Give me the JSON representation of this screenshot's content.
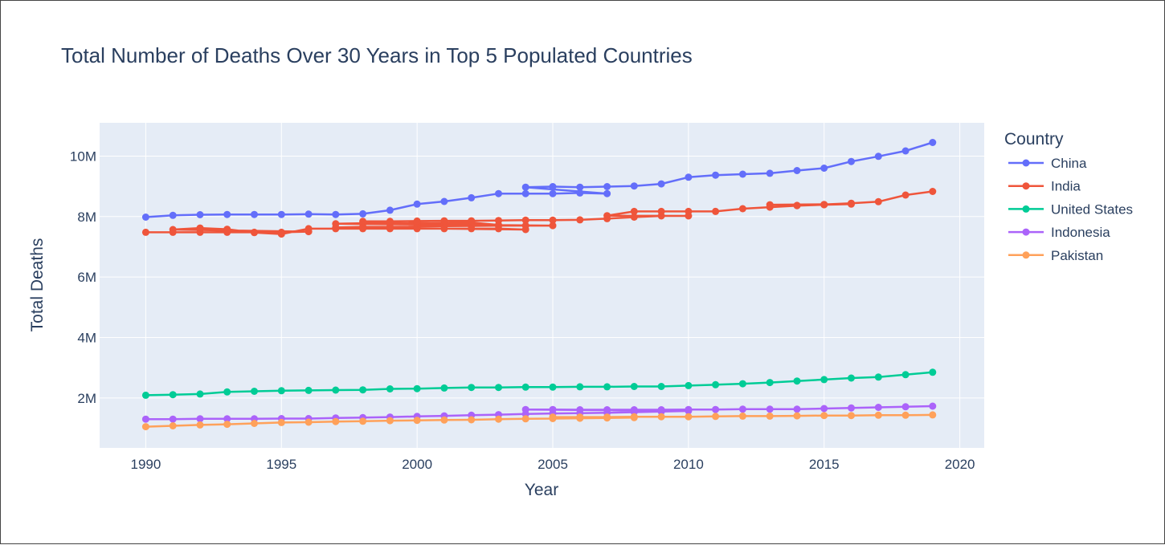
{
  "chart_data": {
    "type": "line",
    "title": "Total Number of Deaths Over 30 Years in Top 5 Populated Countries",
    "xlabel": "Year",
    "ylabel": "Total Deaths",
    "xlim": [
      1988.3,
      2020.9
    ],
    "ylim": [
      350000,
      11100000
    ],
    "x_ticks": [
      1990,
      1995,
      2000,
      2005,
      2010,
      2015,
      2020
    ],
    "y_ticks": [
      {
        "value": 2000000,
        "label": "2M"
      },
      {
        "value": 4000000,
        "label": "4M"
      },
      {
        "value": 6000000,
        "label": "6M"
      },
      {
        "value": 8000000,
        "label": "8M"
      },
      {
        "value": 10000000,
        "label": "10M"
      }
    ],
    "grid": true,
    "plot_background": "#e5ecf6",
    "legend_title": "Country",
    "legend_position": "right",
    "series": [
      {
        "name": "China",
        "color": "#636efa",
        "points": [
          [
            1990,
            7980000
          ],
          [
            1991,
            8040000
          ],
          [
            1992,
            8060000
          ],
          [
            1993,
            8070000
          ],
          [
            1994,
            8070000
          ],
          [
            1995,
            8070000
          ],
          [
            1996,
            8080000
          ],
          [
            1997,
            8070000
          ],
          [
            1998,
            8090000
          ],
          [
            1999,
            8210000
          ],
          [
            2000,
            8410000
          ],
          [
            2001,
            8500000
          ],
          [
            2002,
            8620000
          ],
          [
            2003,
            8760000
          ],
          [
            2004,
            8760000
          ],
          [
            2005,
            8760000
          ],
          [
            2006,
            8780000
          ],
          [
            2007,
            8760000
          ],
          [
            2004,
            8970000
          ],
          [
            2005,
            8990000
          ],
          [
            2006,
            8970000
          ],
          [
            2007,
            8990000
          ],
          [
            2008,
            9010000
          ],
          [
            2009,
            9080000
          ],
          [
            2010,
            9300000
          ],
          [
            2011,
            9370000
          ],
          [
            2012,
            9400000
          ],
          [
            2013,
            9430000
          ],
          [
            2014,
            9520000
          ],
          [
            2015,
            9600000
          ],
          [
            2016,
            9820000
          ],
          [
            2017,
            9990000
          ],
          [
            2018,
            10170000
          ],
          [
            2019,
            10450000
          ]
        ]
      },
      {
        "name": "India",
        "color": "#ef553b",
        "points": [
          [
            1990,
            7480000
          ],
          [
            1991,
            7480000
          ],
          [
            1992,
            7480000
          ],
          [
            1993,
            7480000
          ],
          [
            1994,
            7480000
          ],
          [
            1995,
            7480000
          ],
          [
            1996,
            7500000
          ],
          [
            1991,
            7570000
          ],
          [
            1992,
            7620000
          ],
          [
            1993,
            7580000
          ],
          [
            1994,
            7470000
          ],
          [
            1995,
            7420000
          ],
          [
            1996,
            7600000
          ],
          [
            1997,
            7600000
          ],
          [
            1998,
            7600000
          ],
          [
            1999,
            7600000
          ],
          [
            2000,
            7600000
          ],
          [
            2001,
            7600000
          ],
          [
            2002,
            7600000
          ],
          [
            2003,
            7600000
          ],
          [
            2004,
            7570000
          ],
          [
            1997,
            7640000
          ],
          [
            1998,
            7660000
          ],
          [
            1999,
            7660000
          ],
          [
            2000,
            7670000
          ],
          [
            2001,
            7680000
          ],
          [
            2002,
            7690000
          ],
          [
            2003,
            7700000
          ],
          [
            2004,
            7700000
          ],
          [
            2005,
            7700000
          ],
          [
            1997,
            7760000
          ],
          [
            1998,
            7780000
          ],
          [
            1999,
            7780000
          ],
          [
            2000,
            7780000
          ],
          [
            2001,
            7790000
          ],
          [
            2002,
            7800000
          ],
          [
            2003,
            7720000
          ],
          [
            1998,
            7840000
          ],
          [
            1999,
            7840000
          ],
          [
            2000,
            7850000
          ],
          [
            2001,
            7860000
          ],
          [
            2002,
            7860000
          ],
          [
            2003,
            7870000
          ],
          [
            2004,
            7880000
          ],
          [
            2005,
            7880000
          ],
          [
            2006,
            7890000
          ],
          [
            2007,
            7930000
          ],
          [
            2008,
            7980000
          ],
          [
            2009,
            8020000
          ],
          [
            2010,
            8020000
          ],
          [
            2007,
            8030000
          ],
          [
            2008,
            8170000
          ],
          [
            2009,
            8170000
          ],
          [
            2010,
            8170000
          ],
          [
            2011,
            8170000
          ],
          [
            2012,
            8260000
          ],
          [
            2013,
            8310000
          ],
          [
            2014,
            8360000
          ],
          [
            2015,
            8390000
          ],
          [
            2016,
            8410000
          ],
          [
            2013,
            8390000
          ],
          [
            2014,
            8370000
          ],
          [
            2015,
            8400000
          ],
          [
            2016,
            8440000
          ],
          [
            2017,
            8490000
          ],
          [
            2018,
            8710000
          ],
          [
            2019,
            8830000
          ]
        ]
      },
      {
        "name": "United States",
        "color": "#00cc96",
        "points": [
          [
            1990,
            2090000
          ],
          [
            1991,
            2110000
          ],
          [
            1992,
            2130000
          ],
          [
            1993,
            2200000
          ],
          [
            1994,
            2220000
          ],
          [
            1995,
            2240000
          ],
          [
            1996,
            2250000
          ],
          [
            1997,
            2260000
          ],
          [
            1998,
            2270000
          ],
          [
            1999,
            2300000
          ],
          [
            2000,
            2310000
          ],
          [
            2001,
            2330000
          ],
          [
            2002,
            2350000
          ],
          [
            2003,
            2350000
          ],
          [
            2004,
            2360000
          ],
          [
            2005,
            2360000
          ],
          [
            2006,
            2370000
          ],
          [
            2007,
            2370000
          ],
          [
            2008,
            2380000
          ],
          [
            2009,
            2380000
          ],
          [
            2010,
            2410000
          ],
          [
            2011,
            2440000
          ],
          [
            2012,
            2470000
          ],
          [
            2013,
            2510000
          ],
          [
            2014,
            2560000
          ],
          [
            2015,
            2610000
          ],
          [
            2016,
            2660000
          ],
          [
            2017,
            2690000
          ],
          [
            2018,
            2770000
          ],
          [
            2019,
            2850000
          ]
        ]
      },
      {
        "name": "Indonesia",
        "color": "#ab63fa",
        "points": [
          [
            1990,
            1300000
          ],
          [
            1991,
            1300000
          ],
          [
            1992,
            1310000
          ],
          [
            1993,
            1310000
          ],
          [
            1994,
            1310000
          ],
          [
            1995,
            1320000
          ],
          [
            1996,
            1320000
          ],
          [
            1997,
            1340000
          ],
          [
            1998,
            1350000
          ],
          [
            1999,
            1370000
          ],
          [
            2000,
            1390000
          ],
          [
            2001,
            1410000
          ],
          [
            2002,
            1430000
          ],
          [
            2003,
            1450000
          ],
          [
            2004,
            1470000
          ],
          [
            2005,
            1490000
          ],
          [
            2006,
            1500000
          ],
          [
            2007,
            1510000
          ],
          [
            2008,
            1530000
          ],
          [
            2009,
            1550000
          ],
          [
            2010,
            1570000
          ],
          [
            2004,
            1620000
          ],
          [
            2005,
            1620000
          ],
          [
            2006,
            1610000
          ],
          [
            2007,
            1610000
          ],
          [
            2008,
            1610000
          ],
          [
            2009,
            1610000
          ],
          [
            2010,
            1620000
          ],
          [
            2011,
            1620000
          ],
          [
            2012,
            1630000
          ],
          [
            2013,
            1630000
          ],
          [
            2014,
            1630000
          ],
          [
            2015,
            1650000
          ],
          [
            2016,
            1670000
          ],
          [
            2017,
            1690000
          ],
          [
            2018,
            1710000
          ],
          [
            2019,
            1730000
          ]
        ]
      },
      {
        "name": "Pakistan",
        "color": "#ffa15a",
        "points": [
          [
            1990,
            1050000
          ],
          [
            1991,
            1080000
          ],
          [
            1992,
            1110000
          ],
          [
            1993,
            1130000
          ],
          [
            1994,
            1160000
          ],
          [
            1995,
            1190000
          ],
          [
            1996,
            1200000
          ],
          [
            1997,
            1220000
          ],
          [
            1998,
            1230000
          ],
          [
            1999,
            1250000
          ],
          [
            2000,
            1260000
          ],
          [
            2001,
            1270000
          ],
          [
            2002,
            1280000
          ],
          [
            2003,
            1300000
          ],
          [
            2004,
            1310000
          ],
          [
            2005,
            1320000
          ],
          [
            2006,
            1330000
          ],
          [
            2007,
            1340000
          ],
          [
            2008,
            1350000
          ],
          [
            2005,
            1370000
          ],
          [
            2006,
            1370000
          ],
          [
            2007,
            1370000
          ],
          [
            2008,
            1380000
          ],
          [
            2009,
            1380000
          ],
          [
            2010,
            1380000
          ],
          [
            2011,
            1390000
          ],
          [
            2012,
            1400000
          ],
          [
            2013,
            1400000
          ],
          [
            2014,
            1410000
          ],
          [
            2015,
            1420000
          ],
          [
            2016,
            1420000
          ],
          [
            2017,
            1430000
          ],
          [
            2018,
            1430000
          ],
          [
            2019,
            1440000
          ]
        ]
      }
    ]
  }
}
